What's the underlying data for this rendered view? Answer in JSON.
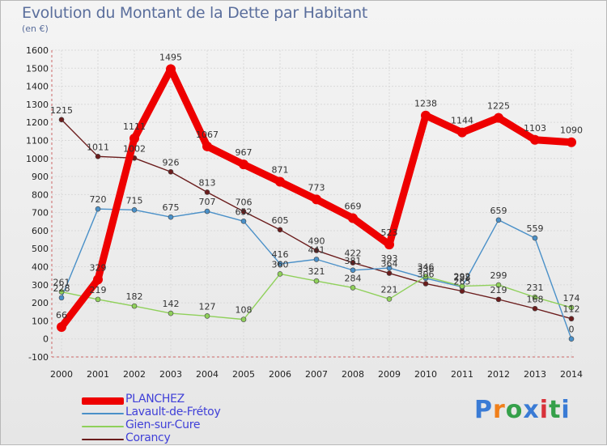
{
  "header": {
    "title": "Evolution du Montant de la Dette par Habitant",
    "unit": "(en €)"
  },
  "logo": {
    "text": "Proxiti",
    "colors": [
      "#3a7bd5",
      "#f07f1a",
      "#35a04a",
      "#3a7bd5",
      "#d8323a",
      "#35a04a",
      "#3a7bd5"
    ]
  },
  "chart_data": {
    "type": "line",
    "title": "Evolution du Montant de la Dette par Habitant",
    "ylabel": "(en €)",
    "xlabel": "",
    "x": [
      "2000",
      "2001",
      "2002",
      "2003",
      "2004",
      "2005",
      "2006",
      "2007",
      "2008",
      "2009",
      "2010",
      "2011",
      "2012",
      "2013",
      "2014"
    ],
    "ylim": [
      -100,
      1600
    ],
    "yticks": [
      -100,
      0,
      100,
      200,
      300,
      400,
      500,
      600,
      700,
      800,
      900,
      1000,
      1100,
      1200,
      1300,
      1400,
      1500,
      1600
    ],
    "grid": true,
    "legend_position": "bottom-left",
    "series": [
      {
        "name": "PLANCHEZ",
        "color": "#ee0000",
        "values": [
          66,
          329,
          1111,
          1495,
          1067,
          967,
          871,
          773,
          669,
          523,
          1238,
          1144,
          1225,
          1103,
          1090
        ],
        "labels": [
          "66",
          "329",
          "1111",
          "1495",
          "1067",
          "967",
          "871",
          "773",
          "669",
          "523",
          "1238",
          "1144",
          "1225",
          "1103",
          "1090"
        ]
      },
      {
        "name": "Lavault-de-Frétoy",
        "color": "#4a90c8",
        "values": [
          228,
          720,
          715,
          675,
          707,
          652,
          416,
          441,
          381,
          393,
          336,
          288,
          659,
          559,
          0
        ],
        "labels": [
          "228",
          "720",
          "715",
          "675",
          "707",
          "652",
          "416",
          "441",
          "381",
          "393",
          "336",
          "288",
          "659",
          "559",
          "0"
        ]
      },
      {
        "name": "Gien-sur-Cure",
        "color": "#8fd05a",
        "values": [
          261,
          219,
          182,
          142,
          127,
          108,
          360,
          321,
          284,
          221,
          346,
          292,
          299,
          231,
          174
        ],
        "labels": [
          "261",
          "219",
          "182",
          "142",
          "127",
          "108",
          "360",
          "321",
          "284",
          "221",
          "346",
          "292",
          "299",
          "231",
          "174"
        ]
      },
      {
        "name": "Corancy",
        "color": "#6b1c1c",
        "values": [
          1215,
          1011,
          1002,
          926,
          813,
          706,
          605,
          490,
          422,
          364,
          306,
          265,
          219,
          168,
          112
        ],
        "labels": [
          "1215",
          "1011",
          "1002",
          "926",
          "813",
          "706",
          "605",
          "490",
          "422",
          "364",
          "306",
          "265",
          "219",
          "168",
          "112"
        ]
      }
    ]
  }
}
